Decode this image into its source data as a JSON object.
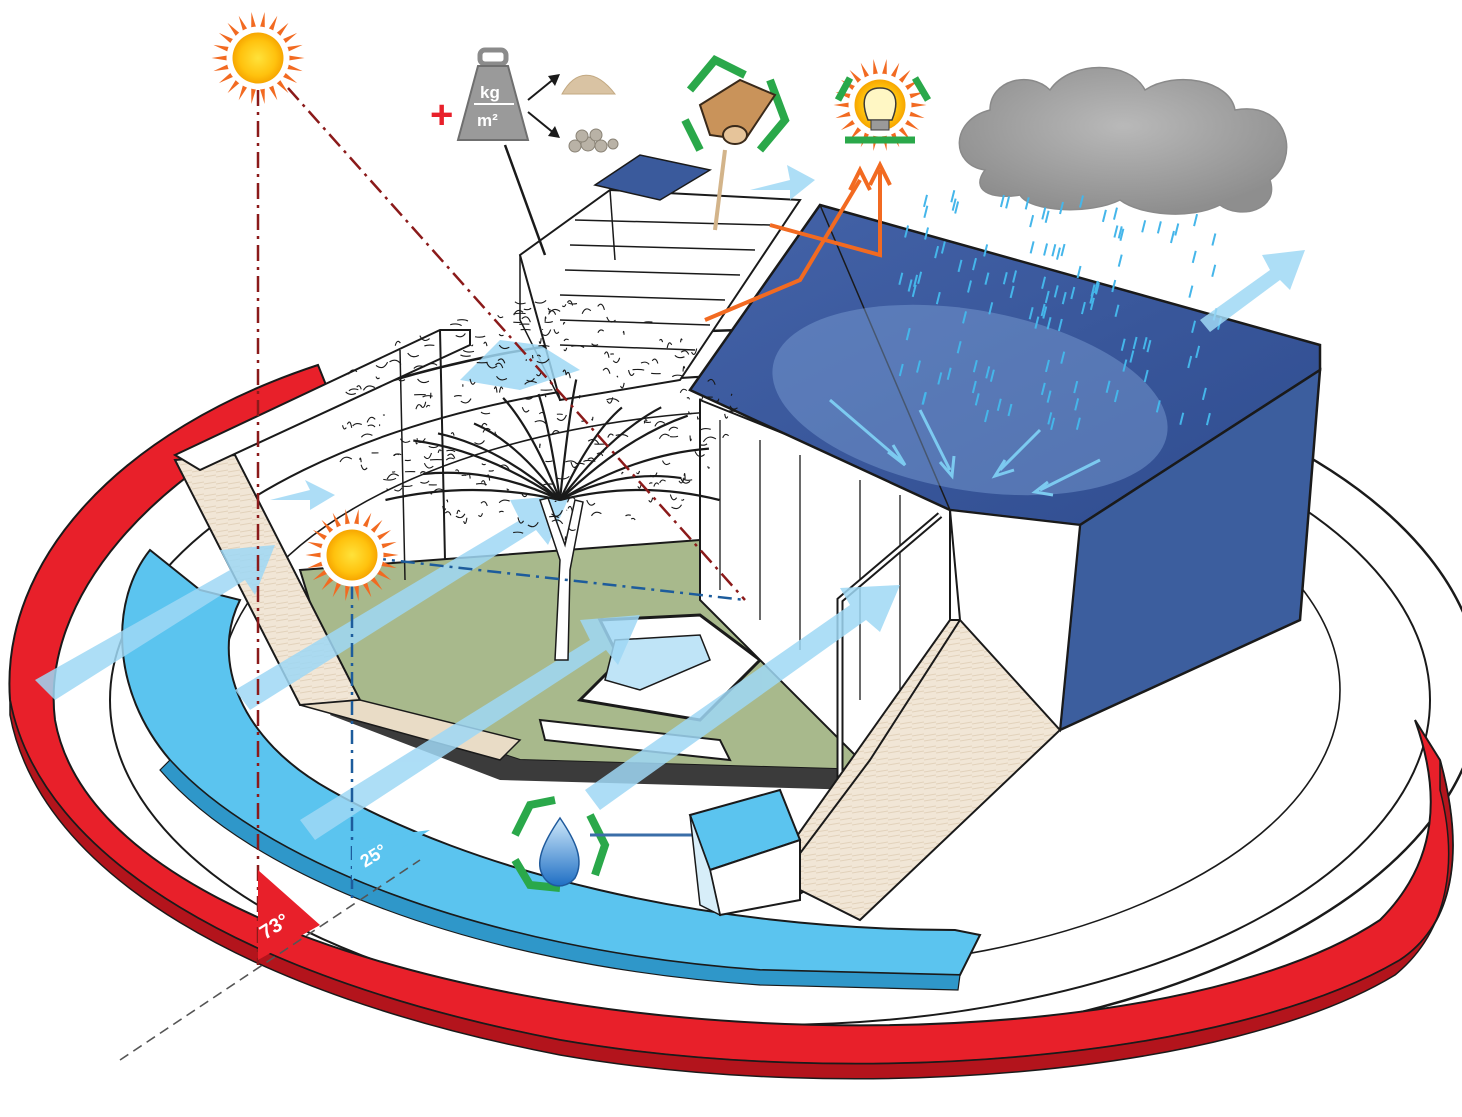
{
  "diagram": {
    "angles": {
      "summer_sun_angle": "73°",
      "winter_sun_angle": "25°"
    },
    "weight_icon": {
      "plus_sign": "+",
      "unit_top": "kg",
      "unit_bottom": "m²"
    },
    "icons": [
      "summer-sun-icon",
      "winter-sun-icon",
      "weight-kg-per-m2-icon",
      "sand-pile-icon",
      "gravel-pile-icon",
      "recycled-timber-icon",
      "recycled-lightbulb-icon",
      "rain-cloud-icon",
      "recycled-water-drop-icon"
    ],
    "colors": {
      "summer_arc": "#e8202a",
      "winter_arc": "#5bc4ef",
      "roof": "#3a5a9c",
      "wind_arrows": "#9fd8f5",
      "lawn": "#a8b98c",
      "solar_ray_orange": "#f26a21",
      "recycle_green": "#2aa84a",
      "summer_sun_line": "#8b1a1a",
      "winter_sun_line": "#1d5c9c"
    }
  }
}
